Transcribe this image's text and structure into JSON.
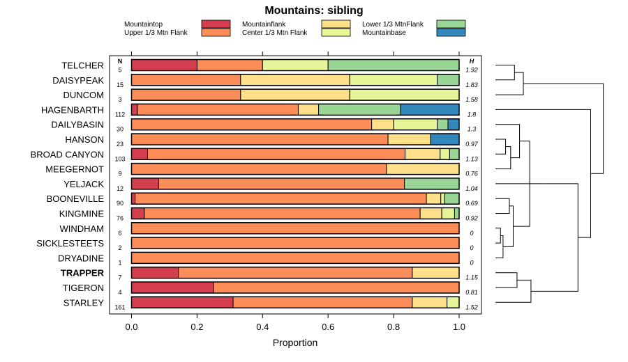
{
  "chart_data": {
    "type": "bar",
    "stacked": true,
    "title": "Mountains: sibling",
    "xlabel": "Proportion",
    "ylabel": "",
    "xlim": [
      0,
      1
    ],
    "x_ticks": [
      0.0,
      0.2,
      0.4,
      0.6,
      0.8,
      1.0
    ],
    "x_tick_labels": [
      "0.0",
      "0.2",
      "0.4",
      "0.6",
      "0.8",
      "1.0"
    ],
    "n_header": "N",
    "h_header": "H",
    "legend": [
      {
        "name": "Mountaintop",
        "color": "#d53e4f"
      },
      {
        "name": "Upper 1/3 Mtn Flank",
        "color": "#fc8d59"
      },
      {
        "name": "Mountainflank",
        "color": "#fee08b"
      },
      {
        "name": "Center 1/3 Mtn Flank",
        "color": "#e6f598"
      },
      {
        "name": "Lower 1/3 MtnFlank",
        "color": "#99d594"
      },
      {
        "name": "Mountainbase",
        "color": "#3288bd"
      }
    ],
    "categories": [
      "TELCHER",
      "DAISYPEAK",
      "DUNCOM",
      "HAGENBARTH",
      "DAILYBASIN",
      "HANSON",
      "BROAD CANYON",
      "MEEGERNOT",
      "YELJACK",
      "BOONEVILLE",
      "KINGMINE",
      "WINDHAM",
      "SICKLESTEETS",
      "DRYADINE",
      "TRAPPER",
      "TIGERON",
      "STARLEY"
    ],
    "bold_category": "TRAPPER",
    "n_values": [
      "5",
      "15",
      "3",
      "112",
      "30",
      "23",
      "103",
      "9",
      "12",
      "90",
      "76",
      "6",
      "2",
      "1",
      "7",
      "4",
      "161"
    ],
    "h_values": [
      "1.92",
      "1.83",
      "1.58",
      "1.8",
      "1.3",
      "0.97",
      "1.13",
      "0.76",
      "1.04",
      "0.69",
      "0.92",
      "0",
      "0",
      "0",
      "1.15",
      "0.81",
      "1.52"
    ],
    "series": [
      {
        "name": "Mountaintop",
        "values": [
          0.2,
          0,
          0,
          0.018,
          0,
          0,
          0.049,
          0,
          0.083,
          0.011,
          0.039,
          0,
          0,
          0,
          0.143,
          0.25,
          0.31
        ]
      },
      {
        "name": "Upper 1/3 Mtn Flank",
        "values": [
          0.2,
          0.333,
          0.333,
          0.491,
          0.733,
          0.783,
          0.786,
          0.778,
          0.75,
          0.889,
          0.842,
          1,
          1,
          1,
          0.714,
          0.75,
          0.547
        ]
      },
      {
        "name": "Mountainflank",
        "values": [
          0,
          0.333,
          0.333,
          0.062,
          0.067,
          0.13,
          0.107,
          0.222,
          0,
          0.044,
          0.066,
          0,
          0,
          0,
          0.143,
          0,
          0.106
        ]
      },
      {
        "name": "Center 1/3 Mtn Flank",
        "values": [
          0.2,
          0.267,
          0.334,
          0,
          0.133,
          0,
          0.029,
          0,
          0,
          0.012,
          0.039,
          0,
          0,
          0,
          0,
          0,
          0.037
        ]
      },
      {
        "name": "Lower 1/3 MtnFlank",
        "values": [
          0.4,
          0.067,
          0,
          0.25,
          0.033,
          0,
          0.029,
          0,
          0.167,
          0.044,
          0.014,
          0,
          0,
          0,
          0,
          0,
          0
        ]
      },
      {
        "name": "Mountainbase",
        "values": [
          0,
          0,
          0,
          0.179,
          0.034,
          0.087,
          0,
          0,
          0,
          0,
          0,
          0,
          0,
          0,
          0,
          0,
          0
        ]
      }
    ],
    "dendrogram": {
      "max_height": 1.0,
      "merges": [
        [
          0,
          1,
          0.15
        ],
        [
          -1,
          2,
          0.22
        ],
        [
          11,
          12,
          0.04
        ],
        [
          -3,
          13,
          0.06
        ],
        [
          9,
          10,
          0.11
        ],
        [
          -5,
          -4,
          0.14
        ],
        [
          5,
          6,
          0.08
        ],
        [
          -7,
          7,
          0.12
        ],
        [
          -8,
          4,
          0.19
        ],
        [
          -9,
          -6,
          0.27
        ],
        [
          -10,
          8,
          0.38
        ],
        [
          14,
          15,
          0.17
        ],
        [
          -12,
          16,
          0.28
        ],
        [
          -11,
          -13,
          0.65
        ],
        [
          3,
          -14,
          0.75
        ],
        [
          -2,
          -15,
          0.85
        ]
      ]
    }
  }
}
